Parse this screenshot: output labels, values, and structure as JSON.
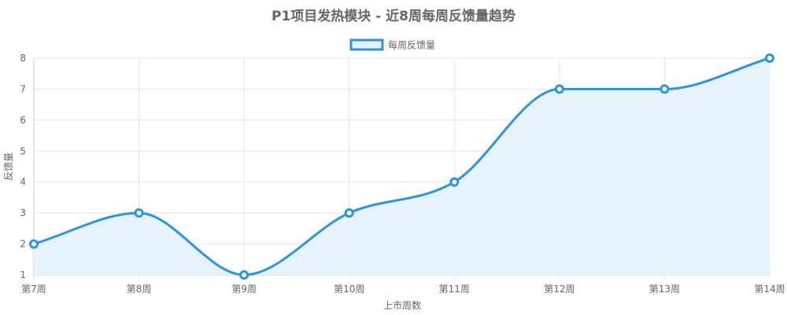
{
  "chart_data": {
    "type": "line",
    "title": "P1项目发热模块 - 近8周每周反馈量趋势",
    "xlabel": "上市周数",
    "ylabel": "反馈量",
    "categories": [
      "第7周",
      "第8周",
      "第9周",
      "第10周",
      "第11周",
      "第12周",
      "第13周",
      "第14周"
    ],
    "series": [
      {
        "name": "每周反馈量",
        "values": [
          2,
          3,
          1,
          3,
          4,
          7,
          7,
          8
        ]
      }
    ],
    "ylim": [
      1,
      8
    ],
    "yticks": [
      "1",
      "2",
      "3",
      "4",
      "5",
      "6",
      "7",
      "8"
    ],
    "grid": true,
    "legend_position": "top-center",
    "fill_area": true,
    "smooth": true,
    "colors": {
      "line": "#2a95e6",
      "fill": "#e6f3fc"
    }
  }
}
